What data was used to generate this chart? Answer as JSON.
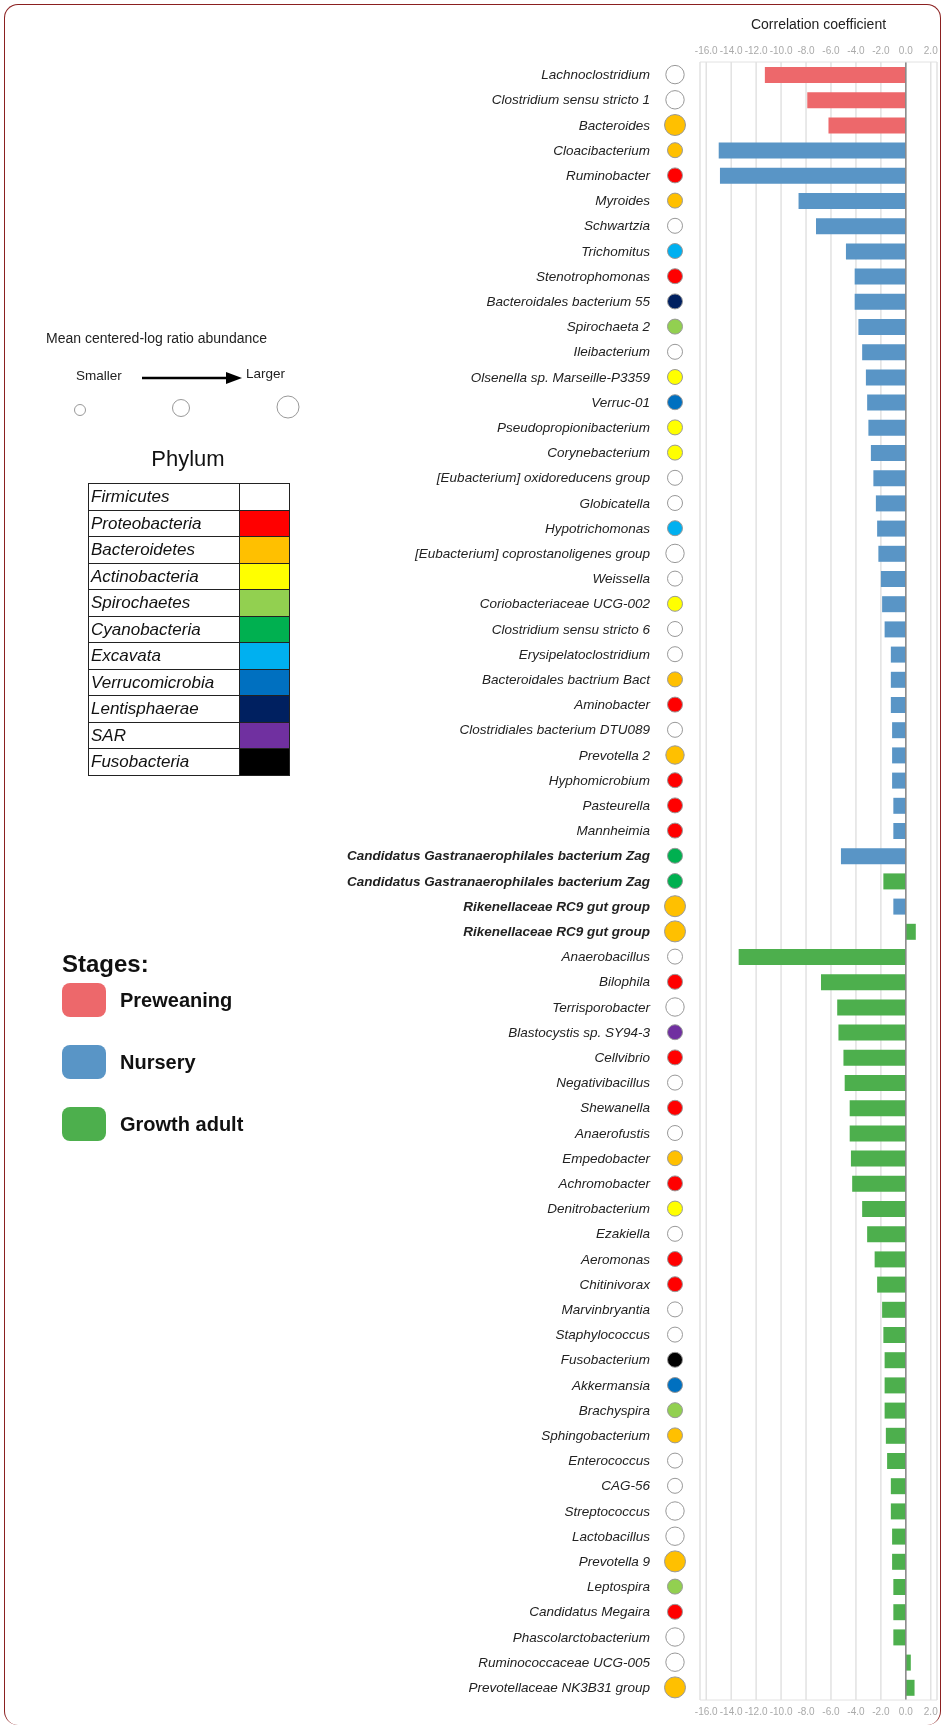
{
  "chart_data": {
    "type": "bar",
    "orientation": "horizontal",
    "x2label": "Correlation coefficient",
    "legend_title": "Stages:",
    "legend": "left",
    "grid": "x",
    "categories": [
      "Lachnoclostridium",
      "Clostridium sensu stricto 1",
      "Bacteroides",
      "Cloacibacterium",
      "Ruminobacter",
      "Myroides",
      "Schwartzia",
      "Trichomitus",
      "Stenotrophomonas",
      "Bacteroidales bacterium 55",
      "Spirochaeta 2",
      "Ileibacterium",
      "Olsenella sp. Marseille-P3359",
      "Verruc-01",
      "Pseudopropionibacterium",
      "Corynebacterium",
      "[Eubacterium] oxidoreducens group",
      "Globicatella",
      "Hypotrichomonas",
      "[Eubacterium] coprostanoligenes group",
      "Weissella",
      "Coriobacteriaceae UCG-002",
      "Clostridium sensu stricto 6",
      "Erysipelatoclostridium",
      "Bacteroidales bactrium Bact",
      "Aminobacter",
      "Clostridiales bacterium DTU089",
      "Prevotella 2",
      "Hyphomicrobium",
      "Pasteurella",
      "Mannheimia",
      "Candidatus Gastranaerophilales bacterium Zag",
      "Candidatus Gastranaerophilales bacterium Zag",
      "Rikenellaceae RC9 gut group",
      "Rikenellaceae RC9 gut group",
      "Anaerobacillus",
      "Bilophila",
      "Terrisporobacter",
      "Blastocystis sp. SY94-3",
      "Cellvibrio",
      "Negativibacillus",
      "Shewanella",
      "Anaerofustis",
      "Empedobacter",
      "Achromobacter",
      "Denitrobacterium",
      "Ezakiella",
      "Aeromonas",
      "Chitinivorax",
      "Marvinbryantia",
      "Staphylococcus",
      "Fusobacterium",
      "Akkermansia",
      "Brachyspira",
      "Sphingobacterium",
      "Enterococcus",
      "CAG-56",
      "Streptococcus",
      "Lactobacillus",
      "Prevotella 9",
      "Leptospira",
      "Candidatus Megaira",
      "Phascolarctobacterium",
      "Ruminococcaceae UCG-005",
      "Prevotellaceae NK3B31 group"
    ],
    "series": [
      {
        "name": "Preweaning",
        "color": "#ed686b",
        "values": [
          -11.3,
          -7.9,
          -6.2,
          null,
          null,
          null,
          null,
          null,
          null,
          null,
          null,
          null,
          null,
          null,
          null,
          null,
          null,
          null,
          null,
          null,
          null,
          null,
          null,
          null,
          null,
          null,
          null,
          null,
          null,
          null,
          null,
          null,
          null,
          null,
          null,
          null,
          null,
          null,
          null,
          null,
          null,
          null,
          null,
          null,
          null,
          null,
          null,
          null,
          null,
          null,
          null,
          null,
          null,
          null,
          null,
          null,
          null,
          null,
          null,
          null,
          null,
          null,
          null,
          null,
          null
        ]
      },
      {
        "name": "Nursery",
        "color": "#5995c6",
        "values": [
          null,
          null,
          null,
          -15.0,
          -14.9,
          -8.6,
          -7.2,
          -4.8,
          -4.1,
          -4.1,
          -3.8,
          -3.5,
          -3.2,
          -3.1,
          -3.0,
          -2.8,
          -2.6,
          -2.4,
          -2.3,
          -2.2,
          -2.0,
          -1.9,
          -1.7,
          -1.2,
          -1.2,
          -1.2,
          -1.1,
          -1.1,
          -1.1,
          -1.0,
          -1.0,
          -5.2,
          null,
          -1.0,
          null,
          null,
          null,
          null,
          null,
          null,
          null,
          null,
          null,
          null,
          null,
          null,
          null,
          null,
          null,
          null,
          null,
          null,
          null,
          null,
          null,
          null,
          null,
          null,
          null,
          null,
          null,
          null,
          null,
          null,
          null
        ]
      },
      {
        "name": "Growth adult",
        "color": "#4daf4d",
        "values": [
          null,
          null,
          null,
          null,
          null,
          null,
          null,
          null,
          null,
          null,
          null,
          null,
          null,
          null,
          null,
          null,
          null,
          null,
          null,
          null,
          null,
          null,
          null,
          null,
          null,
          null,
          null,
          null,
          null,
          null,
          null,
          null,
          -1.8,
          null,
          0.8,
          -13.4,
          -6.8,
          -5.5,
          -5.4,
          -5.0,
          -4.9,
          -4.5,
          -4.5,
          -4.4,
          -4.3,
          -3.5,
          -3.1,
          -2.5,
          -2.3,
          -1.9,
          -1.8,
          -1.7,
          -1.7,
          -1.7,
          -1.6,
          -1.5,
          -1.2,
          -1.2,
          -1.1,
          -1.1,
          -1.0,
          -1.0,
          -1.0,
          0.4,
          0.7
        ]
      }
    ],
    "xlim": [
      -16.5,
      2.5
    ],
    "xticks": [
      {
        "value": -16,
        "label": "-16.0"
      },
      {
        "value": -14,
        "label": "-14.0"
      },
      {
        "value": -12,
        "label": "-12.0"
      },
      {
        "value": -10,
        "label": "-10.0"
      },
      {
        "value": -8,
        "label": "-8.0"
      },
      {
        "value": -6,
        "label": "-6.0"
      },
      {
        "value": -4,
        "label": "-4.0"
      },
      {
        "value": -2,
        "label": "-2.0"
      },
      {
        "value": 0,
        "label": "0.0"
      },
      {
        "value": 2,
        "label": "2.0"
      }
    ],
    "x2lim": [
      -16.5,
      2.5
    ],
    "x2ticks": [
      {
        "value": -16,
        "label": "-16.0"
      },
      {
        "value": -14,
        "label": "-14.0"
      },
      {
        "value": -12,
        "label": "-12.0"
      },
      {
        "value": -10,
        "label": "-10.0"
      },
      {
        "value": -8,
        "label": "-8.0"
      },
      {
        "value": -6,
        "label": "-6.0"
      },
      {
        "value": -4,
        "label": "-4.0"
      },
      {
        "value": -2,
        "label": "-2.0"
      },
      {
        "value": 0,
        "label": "0.0"
      },
      {
        "value": 2,
        "label": "2.0"
      }
    ],
    "ref_lines": [
      {
        "axis": "x",
        "value": 0,
        "color": "#888888"
      }
    ],
    "annotations": [
      "Mean centered-log ratio abundance",
      "Smaller",
      "Larger",
      "Phylum",
      "Firmicutes",
      "Proteobacteria",
      "Bacteroidetes",
      "Actinobacteria",
      "Spirochaetes",
      "Cyanobacteria",
      "Excavata",
      "Verrucomicrobia",
      "Lentisphaerae",
      "SAR",
      "Fusobacteria"
    ]
  }
}
